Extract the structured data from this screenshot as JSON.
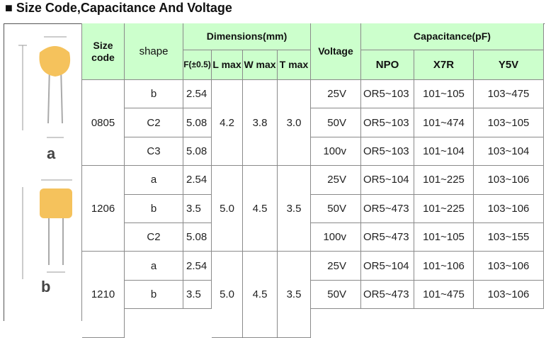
{
  "title": "■ Size Code,Capacitance And Voltage",
  "image_labels": [
    "a",
    "b"
  ],
  "table": {
    "header": {
      "size_code": "Size code",
      "shape": "shape",
      "dimensions": "Dimensions(mm)",
      "f": "F(±0.5)",
      "l": "L max",
      "w": "W max",
      "t": "T max",
      "voltage": "Voltage",
      "capacitance": "Capacitance(pF)",
      "npo": "NPO",
      "x7r": "X7R",
      "y5v": "Y5V"
    },
    "groups": [
      {
        "size_code": "0805",
        "dimensions": [
          "4.2",
          "3.8",
          "3.0"
        ],
        "rows": [
          [
            "b",
            "2.54",
            "25V",
            "OR5~103",
            "101~105",
            "103~475"
          ],
          [
            "C2",
            "5.08",
            "50V",
            "OR5~103",
            "101~474",
            "103~105"
          ],
          [
            "C3",
            "5.08",
            "100v",
            "OR5~103",
            "101~104",
            "103~104"
          ]
        ]
      },
      {
        "size_code": "1206",
        "dimensions": [
          "5.0",
          "4.5",
          "3.5"
        ],
        "rows": [
          [
            "a",
            "2.54",
            "25V",
            "OR5~104",
            "101~225",
            "103~106"
          ],
          [
            "b",
            "3.5",
            "50V",
            "OR5~473",
            "101~225",
            "103~106"
          ],
          [
            "C2",
            "5.08",
            "100v",
            "OR5~473",
            "101~105",
            "103~155"
          ]
        ]
      },
      {
        "size_code": "1210",
        "dimensions": [
          "5.0",
          "4.5",
          "3.5"
        ],
        "rows": [
          [
            "a",
            "2.54",
            "25V",
            "OR5~104",
            "101~106",
            "103~106"
          ],
          [
            "b",
            "3.5",
            "50V",
            "OR5~473",
            "101~475",
            "103~106"
          ]
        ]
      }
    ]
  }
}
